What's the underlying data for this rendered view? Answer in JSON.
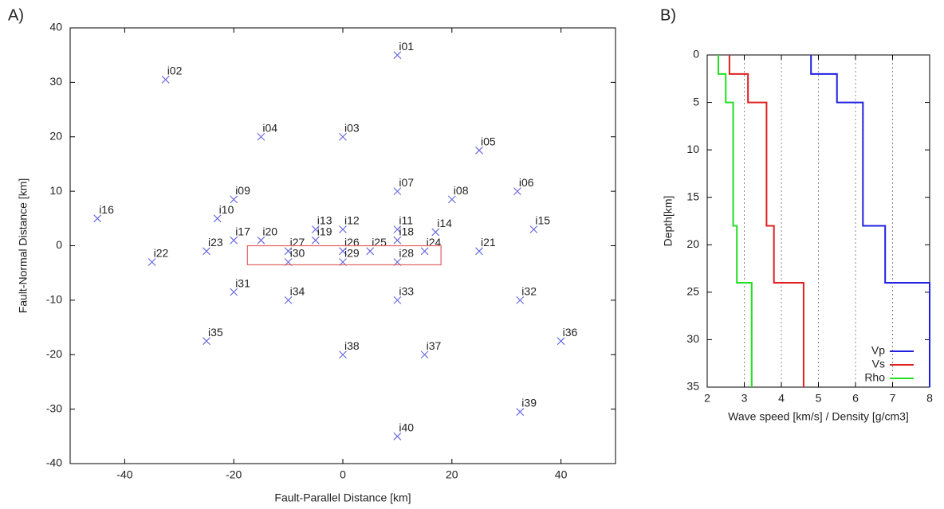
{
  "chart_data": [
    {
      "type": "scatter",
      "panel_label": "A)",
      "xlabel": "Fault-Parallel Distance [km]",
      "ylabel": "Fault-Normal Distance [km]",
      "xlim": [
        -50,
        50
      ],
      "ylim": [
        -40,
        40
      ],
      "xticks": [
        -40,
        -20,
        0,
        20,
        40
      ],
      "yticks": [
        -40,
        -30,
        -20,
        -10,
        0,
        10,
        20,
        30,
        40
      ],
      "color": "#6a6ae0",
      "fault_color": "#e06060",
      "fault_x": [
        -17.5,
        18
      ],
      "fault_y": [
        -3.5,
        0
      ],
      "labels": [
        "i01",
        "i02",
        "i03",
        "i04",
        "i05",
        "i06",
        "i07",
        "i08",
        "i09",
        "i10",
        "i11",
        "i12",
        "i13",
        "i14",
        "i15",
        "i16",
        "i17",
        "i18",
        "i19",
        "i20",
        "i21",
        "i22",
        "i23",
        "i24",
        "i25",
        "i26",
        "i27",
        "i28",
        "i29",
        "i30",
        "i31",
        "i32",
        "i33",
        "i34",
        "i35",
        "i36",
        "i37",
        "i38",
        "i39",
        "i40"
      ],
      "x": [
        10,
        -32.5,
        0,
        -15,
        25,
        32,
        10,
        20,
        -20,
        -23,
        10,
        0,
        -5,
        17,
        35,
        -45,
        -20,
        10,
        -5,
        -15,
        25,
        -35,
        -25,
        15,
        5,
        0,
        -10,
        10,
        0,
        -10,
        -20,
        32.5,
        10,
        -10,
        -25,
        40,
        15,
        0,
        32.5,
        10
      ],
      "y": [
        35,
        30.5,
        20,
        20,
        17.5,
        10,
        10,
        8.5,
        8.5,
        5,
        3,
        3,
        3,
        2.5,
        3,
        5,
        1,
        1,
        1,
        1,
        -1,
        -3,
        -1,
        -1,
        -1,
        -1,
        -1,
        -3,
        -3,
        -3,
        -8.5,
        -10,
        -10,
        -10,
        -17.5,
        -17.5,
        -20,
        -20,
        -30.5,
        -35
      ]
    },
    {
      "type": "step",
      "panel_label": "B)",
      "xlabel": "Wave speed [km/s] / Density [g/cm3]",
      "ylabel": "Depth[km]",
      "xlim": [
        2,
        8
      ],
      "ylim": [
        35,
        0
      ],
      "xticks": [
        2,
        3,
        4,
        5,
        6,
        7,
        8
      ],
      "yticks": [
        0,
        5,
        10,
        15,
        20,
        25,
        30,
        35
      ],
      "grid": true,
      "legend": "lower right",
      "depth": [
        0,
        2,
        2,
        5,
        5,
        18,
        18,
        24,
        24,
        35
      ],
      "series": [
        {
          "name": "Vp",
          "color": "#2020e0",
          "values": [
            4.8,
            4.8,
            5.5,
            5.5,
            6.2,
            6.2,
            6.8,
            6.8,
            8,
            8
          ]
        },
        {
          "name": "Vs",
          "color": "#e02020",
          "values": [
            2.6,
            2.6,
            3.1,
            3.1,
            3.6,
            3.6,
            3.8,
            3.8,
            4.6,
            4.6
          ]
        },
        {
          "name": "Rho",
          "color": "#20e020",
          "values": [
            2.3,
            2.3,
            2.5,
            2.5,
            2.7,
            2.7,
            2.8,
            2.8,
            3.2,
            3.2
          ]
        }
      ]
    }
  ]
}
